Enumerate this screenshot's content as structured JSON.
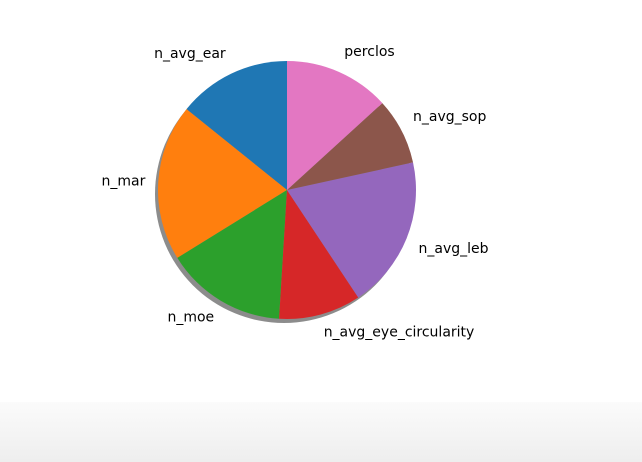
{
  "chart_data": {
    "type": "pie",
    "title": "",
    "start_angle_deg": 90,
    "direction": "counterclockwise",
    "shadow": true,
    "slices": [
      {
        "label": "n_avg_ear",
        "value": 14.5,
        "color": "#1f77b4"
      },
      {
        "label": "n_mar",
        "value": 20.0,
        "color": "#ff7f0e"
      },
      {
        "label": "n_moe",
        "value": 15.5,
        "color": "#2ca02c"
      },
      {
        "label": "n_avg_eye_circularity",
        "value": 10.5,
        "color": "#d62728"
      },
      {
        "label": "n_avg_leb",
        "value": 19.5,
        "color": "#9467bd"
      },
      {
        "label": "n_avg_sop",
        "value": 8.5,
        "color": "#8c564b"
      },
      {
        "label": "perclos",
        "value": 13.5,
        "color": "#e377c2"
      }
    ]
  }
}
